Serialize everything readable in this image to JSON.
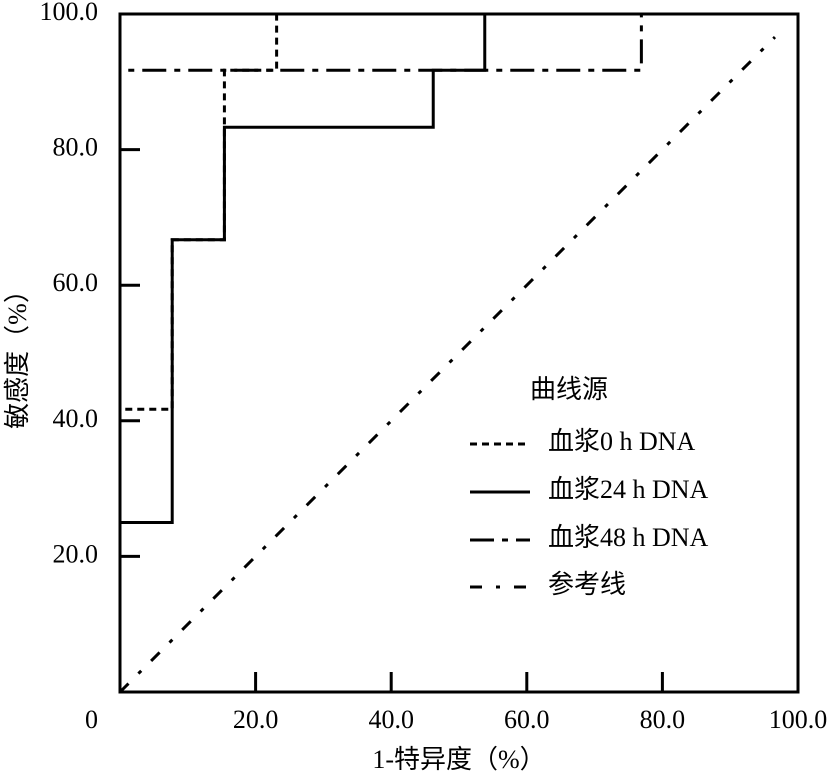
{
  "chart_data": {
    "type": "line",
    "xlabel": "1-特异度（%）",
    "ylabel": "敏感度（%）",
    "legend_title": "曲线源",
    "legend": "lower right",
    "xlim": [
      0,
      100
    ],
    "ylim": [
      0,
      100
    ],
    "xticks": [
      0,
      {
        "value": 20,
        "label": "20.0"
      },
      {
        "value": 40,
        "label": "40.0"
      },
      {
        "value": 60,
        "label": "60.0"
      },
      {
        "value": 80,
        "label": "80.0"
      },
      {
        "value": 100,
        "label": "100.0"
      }
    ],
    "yticks": [
      {
        "value": 20,
        "label": "20.0"
      },
      {
        "value": 40,
        "label": "40.0"
      },
      {
        "value": 60,
        "label": "60.0"
      },
      {
        "value": 80,
        "label": "80.0"
      },
      {
        "value": 100,
        "label": "100.0"
      }
    ],
    "series": [
      {
        "name": "血浆0 h DNA",
        "color": "#000000",
        "style": "dotted",
        "x": [
          0,
          0,
          7.7,
          7.7,
          15.4,
          15.4,
          23.1,
          23.1,
          100
        ],
        "values": [
          0,
          41.7,
          41.7,
          66.7,
          66.7,
          91.7,
          91.7,
          100,
          100
        ]
      },
      {
        "name": "血浆24 h DNA",
        "color": "#000000",
        "style": "solid",
        "x": [
          0,
          0,
          7.7,
          7.7,
          15.4,
          15.4,
          46.2,
          46.2,
          53.8,
          53.8,
          100
        ],
        "values": [
          0,
          25,
          25,
          66.7,
          66.7,
          83.3,
          83.3,
          91.7,
          91.7,
          100,
          100
        ]
      },
      {
        "name": "血浆48 h DNA",
        "color": "#000000",
        "style": "dashed",
        "x": [
          0,
          0,
          76.9,
          76.9,
          100
        ],
        "values": [
          0,
          91.7,
          91.7,
          100,
          100
        ]
      },
      {
        "name": "参考线",
        "color": "#000000",
        "style": "dashdot",
        "x": [
          0,
          96.6
        ],
        "values": [
          0,
          96.6
        ]
      }
    ]
  }
}
